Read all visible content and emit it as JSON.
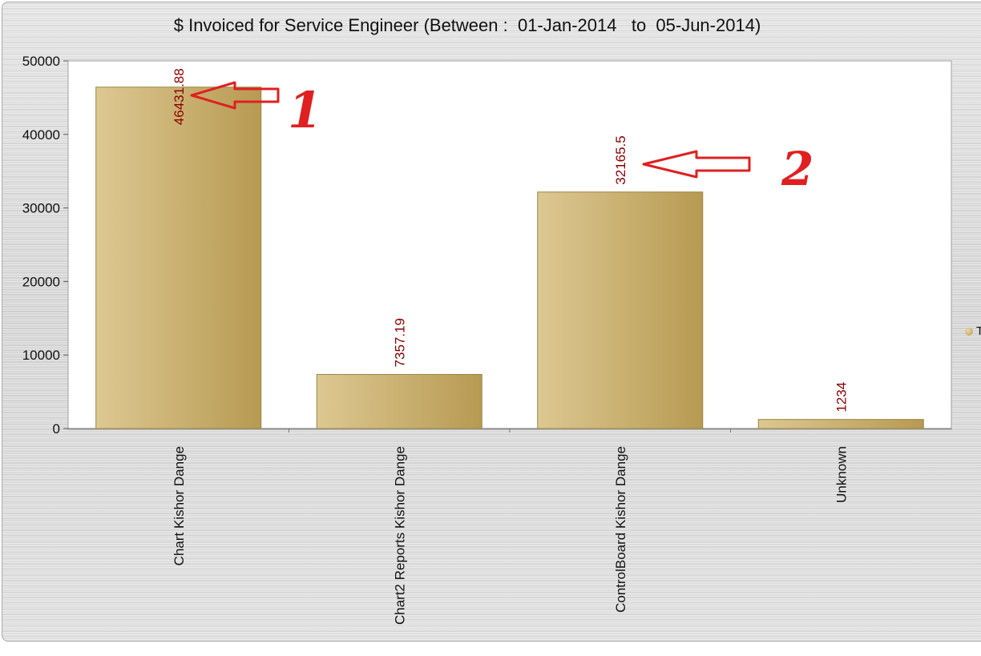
{
  "chart_data": {
    "type": "bar",
    "title": "$ Invoiced for Service Engineer (Between :  01-Jan-2014   to  05-Jun-2014)",
    "categories": [
      "Chart  Kishor Dange",
      "Chart2 Reports Kishor Dange",
      "ControlBoard  Kishor Dange",
      "Unknown"
    ],
    "series": [
      {
        "values": [
          46431.88,
          7357.19,
          32165.5,
          1234
        ]
      }
    ],
    "value_labels": [
      "46431.88",
      "7357.19",
      "32165.5",
      "1234"
    ],
    "yticks": [
      "0",
      "10000",
      "20000",
      "30000",
      "40000",
      "50000"
    ],
    "ylim": [
      0,
      50000
    ],
    "grid": false,
    "legend": {
      "position": "right",
      "label": "T"
    },
    "annotations": [
      "1",
      "2"
    ],
    "colors": {
      "bar_light": "#ddc892",
      "bar_dark": "#b79a52",
      "value_label": "#8b0000",
      "annotation": "#e02020"
    }
  }
}
